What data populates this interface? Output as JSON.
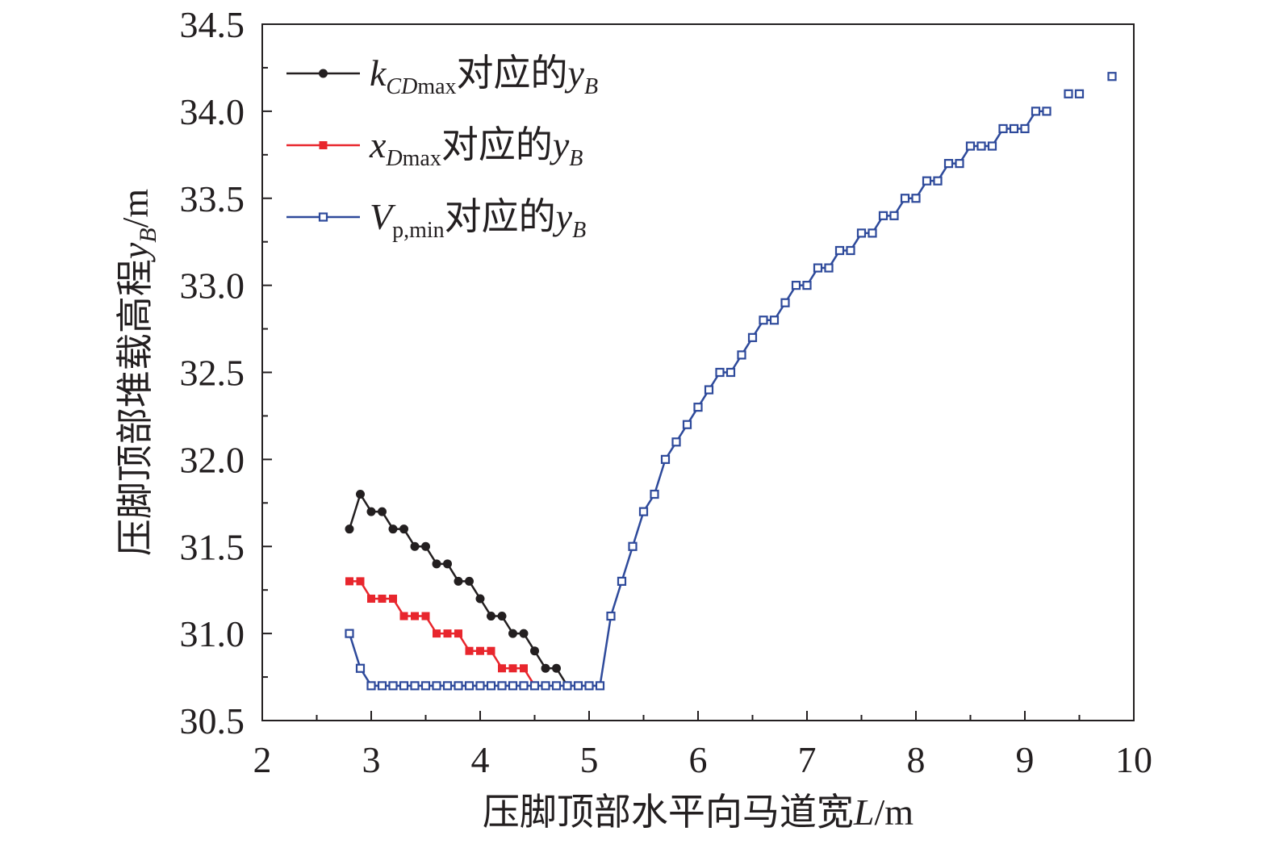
{
  "chart_data": {
    "type": "line",
    "xlabel": {
      "main": "压脚顶部水平向马道宽",
      "var": "L",
      "unit": "/m"
    },
    "ylabel": {
      "main": "压脚顶部堆载高程",
      "var": "y",
      "sub": "B",
      "unit": "/m"
    },
    "xlim": [
      2,
      10
    ],
    "ylim": [
      30.5,
      34.5
    ],
    "x_ticks": [
      2,
      3,
      4,
      5,
      6,
      7,
      8,
      9,
      10
    ],
    "y_ticks": [
      30.5,
      31.0,
      31.5,
      32.0,
      32.5,
      33.0,
      33.5,
      34.0,
      34.5
    ],
    "x_tick_labels": [
      "2",
      "3",
      "4",
      "5",
      "6",
      "7",
      "8",
      "9",
      "10"
    ],
    "y_tick_labels": [
      "30.5",
      "31.0",
      "31.5",
      "32.0",
      "32.5",
      "33.0",
      "33.5",
      "34.0",
      "34.5"
    ],
    "grid": false,
    "legend_position": "top-left",
    "series": [
      {
        "name": "kCDmax对应的yB",
        "legend": {
          "var": "k",
          "sub": "CD",
          "sub2": "max",
          "text": "对应的",
          "var2": "y",
          "sub3": "B"
        },
        "color": "#231f20",
        "marker": "filled-circle",
        "x": [
          2.8,
          2.9,
          3.0,
          3.1,
          3.2,
          3.3,
          3.4,
          3.5,
          3.6,
          3.7,
          3.8,
          3.9,
          4.0,
          4.1,
          4.2,
          4.3,
          4.4,
          4.5,
          4.6,
          4.7,
          4.8
        ],
        "y": [
          31.6,
          31.8,
          31.7,
          31.7,
          31.6,
          31.6,
          31.5,
          31.5,
          31.4,
          31.4,
          31.3,
          31.3,
          31.2,
          31.1,
          31.1,
          31.0,
          31.0,
          30.9,
          30.8,
          30.8,
          30.7
        ]
      },
      {
        "name": "xDmax对应的yB",
        "legend": {
          "var": "x",
          "sub": "D",
          "sub2": "max",
          "text": "对应的",
          "var2": "y",
          "sub3": "B"
        },
        "color": "#e8262d",
        "marker": "filled-square",
        "x": [
          2.8,
          2.9,
          3.0,
          3.1,
          3.2,
          3.3,
          3.4,
          3.5,
          3.6,
          3.7,
          3.8,
          3.9,
          4.0,
          4.1,
          4.2,
          4.3,
          4.4,
          4.5
        ],
        "y": [
          31.3,
          31.3,
          31.2,
          31.2,
          31.2,
          31.1,
          31.1,
          31.1,
          31.0,
          31.0,
          31.0,
          30.9,
          30.9,
          30.9,
          30.8,
          30.8,
          30.8,
          30.7
        ]
      },
      {
        "name": "Vp,min对应的yB",
        "legend": {
          "var": "V",
          "sub": "",
          "sub2": "p,min",
          "text": "对应的",
          "var2": "y",
          "sub3": "B"
        },
        "color": "#2e4a9b",
        "marker": "open-square",
        "x": [
          2.8,
          2.9,
          3.0,
          3.1,
          3.2,
          3.3,
          3.4,
          3.5,
          3.6,
          3.7,
          3.8,
          3.9,
          4.0,
          4.1,
          4.2,
          4.3,
          4.4,
          4.5,
          4.6,
          4.7,
          4.8,
          4.9,
          5.0,
          5.1,
          5.2,
          5.3,
          5.4,
          5.5,
          5.6,
          5.7,
          5.8,
          5.9,
          6.0,
          6.1,
          6.2,
          6.3,
          6.4,
          6.5,
          6.6,
          6.7,
          6.8,
          6.9,
          7.0,
          7.1,
          7.2,
          7.3,
          7.4,
          7.5,
          7.6,
          7.7,
          7.8,
          7.9,
          8.0,
          8.1,
          8.2,
          8.3,
          8.4,
          8.5,
          8.6,
          8.7,
          8.8,
          8.9,
          9.0,
          9.1,
          9.2
        ],
        "y": [
          31.0,
          30.8,
          30.7,
          30.7,
          30.7,
          30.7,
          30.7,
          30.7,
          30.7,
          30.7,
          30.7,
          30.7,
          30.7,
          30.7,
          30.7,
          30.7,
          30.7,
          30.7,
          30.7,
          30.7,
          30.7,
          30.7,
          30.7,
          30.7,
          31.1,
          31.3,
          31.5,
          31.7,
          31.8,
          32.0,
          32.1,
          32.2,
          32.3,
          32.4,
          32.5,
          32.5,
          32.6,
          32.7,
          32.8,
          32.8,
          32.9,
          33.0,
          33.0,
          33.1,
          33.1,
          33.2,
          33.2,
          33.3,
          33.3,
          33.4,
          33.4,
          33.5,
          33.5,
          33.6,
          33.6,
          33.7,
          33.7,
          33.8,
          33.8,
          33.8,
          33.9,
          33.9,
          33.9,
          34.0,
          34.0
        ],
        "extra_points": {
          "x": [
            9.4,
            9.5,
            9.8
          ],
          "y": [
            34.1,
            34.1,
            34.2
          ]
        }
      }
    ]
  }
}
